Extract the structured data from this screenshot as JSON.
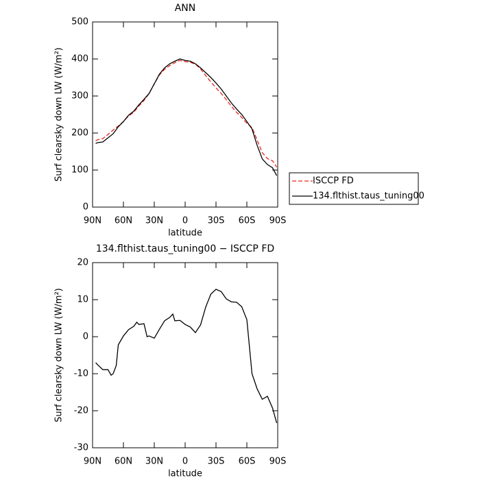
{
  "chart_data": [
    {
      "type": "line",
      "title": "ANN",
      "x_label": "latitude",
      "y_label": "Surf clearsky down LW (W/m²)",
      "x": [
        87,
        85,
        80,
        75,
        70,
        65,
        60,
        55,
        50,
        45,
        40,
        35,
        30,
        25,
        20,
        15,
        10,
        5,
        0,
        -5,
        -10,
        -15,
        -20,
        -25,
        -30,
        -35,
        -40,
        -45,
        -50,
        -55,
        -60,
        -65,
        -70,
        -75,
        -80,
        -85,
        -89
      ],
      "series": [
        {
          "name": "ISCCP FD",
          "color": "#e8231b",
          "dash": true,
          "values": [
            179,
            182,
            185,
            196,
            208,
            219,
            231,
            246,
            256,
            273,
            288,
            307,
            333,
            357,
            372,
            382,
            390,
            396,
            393,
            391,
            386,
            373,
            355,
            338,
            322,
            307,
            290,
            272,
            256,
            242,
            226,
            215,
            181,
            147,
            131,
            125,
            108
          ]
        },
        {
          "name": "134.flthist.taus_tuning00",
          "color": "#000000",
          "dash": false,
          "values": [
            172,
            174,
            176,
            187,
            198,
            217,
            231,
            248,
            259,
            276,
            291,
            307,
            333,
            359,
            376,
            387,
            394,
            400,
            396,
            394,
            387,
            376,
            363,
            350,
            335,
            319,
            300,
            281,
            265,
            250,
            231,
            211,
            167,
            130,
            115,
            106,
            85
          ]
        }
      ],
      "xlim": [
        90,
        -90
      ],
      "xticks": [
        {
          "value": 90,
          "label": "90N"
        },
        {
          "value": 60,
          "label": "60N"
        },
        {
          "value": 30,
          "label": "30N"
        },
        0,
        {
          "value": -30,
          "label": "30S"
        },
        {
          "value": -60,
          "label": "60S"
        },
        {
          "value": -90,
          "label": "90S"
        }
      ],
      "ylim": [
        0,
        500
      ],
      "yticks": [
        0,
        100,
        200,
        300,
        400,
        500
      ],
      "legend": "right"
    },
    {
      "type": "line",
      "title": "134.flthist.taus_tuning00 − ISCCP FD",
      "x_label": "latitude",
      "y_label": "Surf clearsky down LW (W/m²)",
      "x": [
        87,
        85,
        80,
        75,
        72,
        70,
        67,
        65,
        60,
        55,
        50,
        47,
        45,
        40,
        37,
        35,
        30,
        25,
        20,
        15,
        12,
        10,
        5,
        0,
        -5,
        -10,
        -15,
        -20,
        -25,
        -30,
        -35,
        -40,
        -45,
        -50,
        -55,
        -60,
        -65,
        -70,
        -75,
        -80,
        -85,
        -89
      ],
      "series": [
        {
          "color": "#000000",
          "dash": false,
          "values": [
            -7,
            -7.6,
            -8.9,
            -8.9,
            -10.4,
            -10,
            -7.8,
            -2.2,
            0.2,
            1.9,
            2.8,
            3.9,
            3.3,
            3.5,
            0,
            0.2,
            -0.4,
            2,
            4.3,
            5.2,
            6.1,
            4.3,
            4.4,
            3.3,
            2.6,
            1.1,
            3.2,
            8,
            11.5,
            12.8,
            12.2,
            10.2,
            9.4,
            9.3,
            8.1,
            4.6,
            -10,
            -14.1,
            -16.9,
            -16.1,
            -19.3,
            -23.3
          ]
        }
      ],
      "xlim": [
        90,
        -90
      ],
      "xticks": [
        {
          "value": 90,
          "label": "90N"
        },
        {
          "value": 60,
          "label": "60N"
        },
        {
          "value": 30,
          "label": "30N"
        },
        0,
        {
          "value": -30,
          "label": "30S"
        },
        {
          "value": -60,
          "label": "60S"
        },
        {
          "value": -90,
          "label": "90S"
        }
      ],
      "ylim": [
        -30,
        20
      ],
      "yticks": [
        -30,
        -20,
        -10,
        0,
        10,
        20
      ]
    }
  ]
}
